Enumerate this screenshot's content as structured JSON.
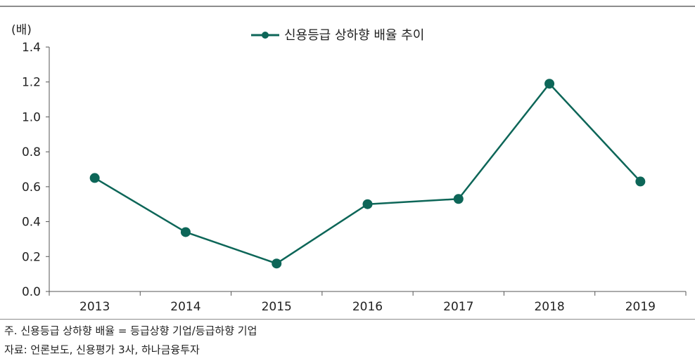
{
  "chart_data": {
    "type": "line",
    "unit_label": "(배)",
    "categories": [
      "2013",
      "2014",
      "2015",
      "2016",
      "2017",
      "2018",
      "2019"
    ],
    "series": [
      {
        "name": "신용등급 상하향 배율 추이",
        "values": [
          0.65,
          0.34,
          0.16,
          0.5,
          0.53,
          1.19,
          0.63
        ]
      }
    ],
    "ylim": [
      0.0,
      1.4
    ],
    "yticks": [
      "0.0",
      "0.2",
      "0.4",
      "0.6",
      "0.8",
      "1.0",
      "1.2",
      "1.4"
    ],
    "legend_position": "top-center",
    "grid": false,
    "line_color": "#0d6658",
    "marker_color": "#0d6658"
  },
  "footer": {
    "note": "주. 신용등급 상하향 배율 = 등급상향 기업/등급하향 기업",
    "source": "자료: 언론보도, 신용평가 3사, 하나금융투자"
  }
}
